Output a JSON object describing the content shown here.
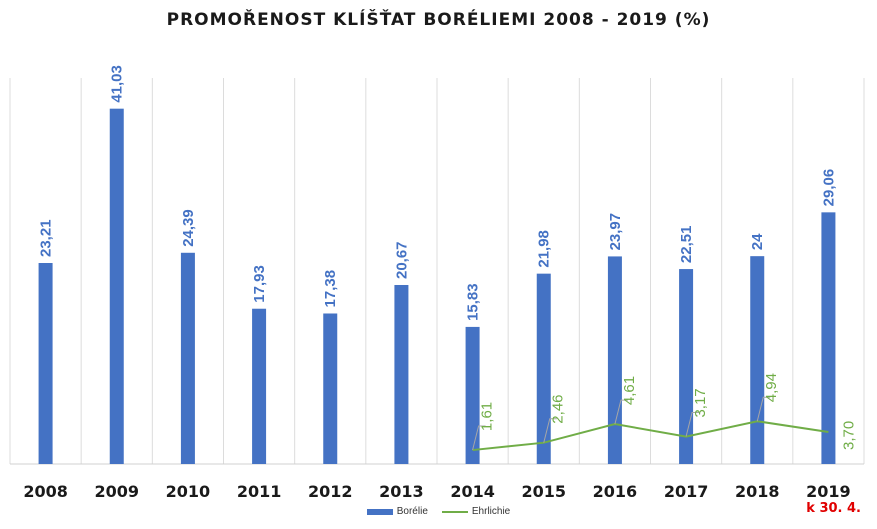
{
  "page": {
    "title": "PROMOŘENOST KLÍŠŤAT BORÉLIEMI 2008 - 2019 (%)",
    "note": "k 30. 4."
  },
  "colors": {
    "bar": "#4472c4",
    "line": "#70ad47",
    "note": "#e00000",
    "grid": "#dcdcdc"
  },
  "chart_data": {
    "type": "bar",
    "title": "PROMOŘENOST KLÍŠŤAT BORÉLIEMI 2008 - 2019 (%)",
    "categories": [
      "2008",
      "2009",
      "2010",
      "2011",
      "2012",
      "2013",
      "2014",
      "2015",
      "2016",
      "2017",
      "2018",
      "2019"
    ],
    "series": [
      {
        "name": "Borélie",
        "type": "bar",
        "values": [
          23.21,
          41.03,
          24.39,
          17.93,
          17.38,
          20.67,
          15.83,
          21.98,
          23.97,
          22.51,
          24,
          29.06
        ],
        "labels": [
          "23,21",
          "41,03",
          "24,39",
          "17,93",
          "17,38",
          "20,67",
          "15,83",
          "21,98",
          "23,97",
          "22,51",
          "24",
          "29,06"
        ]
      },
      {
        "name": "Ehrlichie",
        "type": "line",
        "values": [
          null,
          null,
          null,
          null,
          null,
          null,
          1.61,
          2.46,
          4.61,
          3.17,
          4.94,
          3.7
        ],
        "labels": [
          "",
          "",
          "",
          "",
          "",
          "",
          "1,61",
          "2,46",
          "4,61",
          "3,17",
          "4,94",
          "3,70"
        ]
      }
    ],
    "ylim": [
      0,
      42
    ],
    "xlabel": "",
    "ylabel": "",
    "grid": true,
    "legend": "bottom"
  }
}
